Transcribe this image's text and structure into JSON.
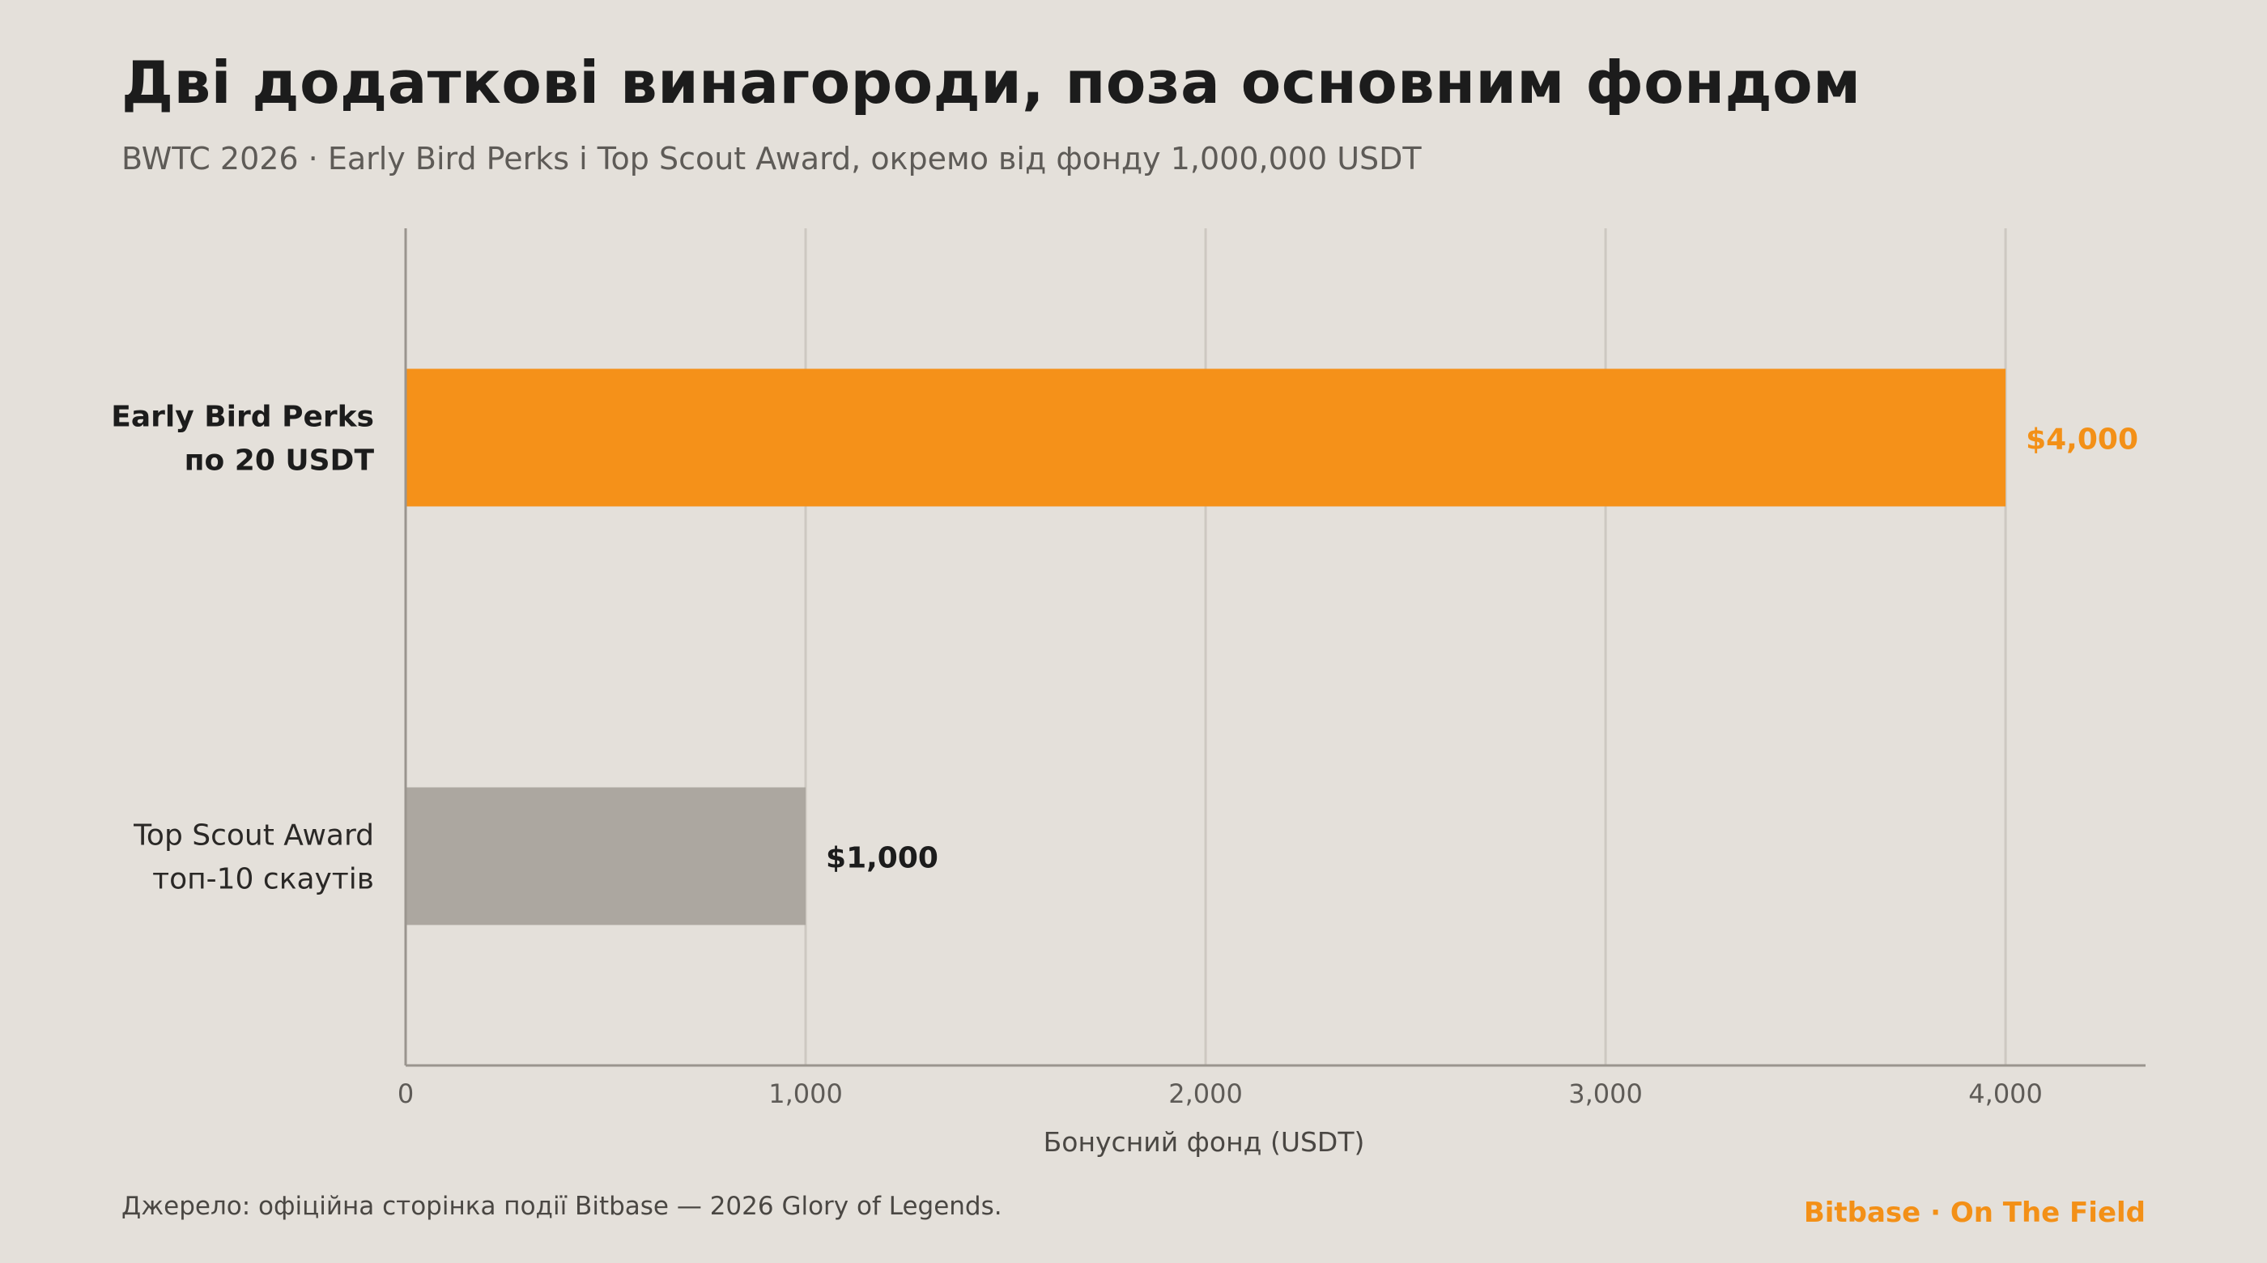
{
  "header": {
    "title": "Дві додаткові винагороди, поза основним фондом",
    "subtitle": "BWTC 2026 · Early Bird Perks і Top Scout Award, окремо від фонду 1,000,000 USDT"
  },
  "chart_data": {
    "type": "bar",
    "orientation": "horizontal",
    "categories": [
      {
        "line1": "Early Bird Perks",
        "line2": "по 20 USDT",
        "emphasis": true
      },
      {
        "line1": "Top Scout Award",
        "line2": "топ-10 скаутів",
        "emphasis": false
      }
    ],
    "values": [
      4000,
      1000
    ],
    "value_labels": [
      "$4,000",
      "$1,000"
    ],
    "bar_colors": [
      "#f59119",
      "#aca7a0"
    ],
    "value_label_colors": [
      "#f39017",
      "#1c1c1c"
    ],
    "xlabel": "Бонусний фонд (USDT)",
    "xlim": [
      0,
      4350
    ],
    "xticks": [
      0,
      1000,
      2000,
      3000,
      4000
    ],
    "xtick_labels": [
      "0",
      "1,000",
      "2,000",
      "3,000",
      "4,000"
    ],
    "grid": "vertical"
  },
  "footer": {
    "source": "Джерело: офіційна сторінка події Bitbase — 2026 Glory of Legends.",
    "brand": "Bitbase · On The Field"
  }
}
